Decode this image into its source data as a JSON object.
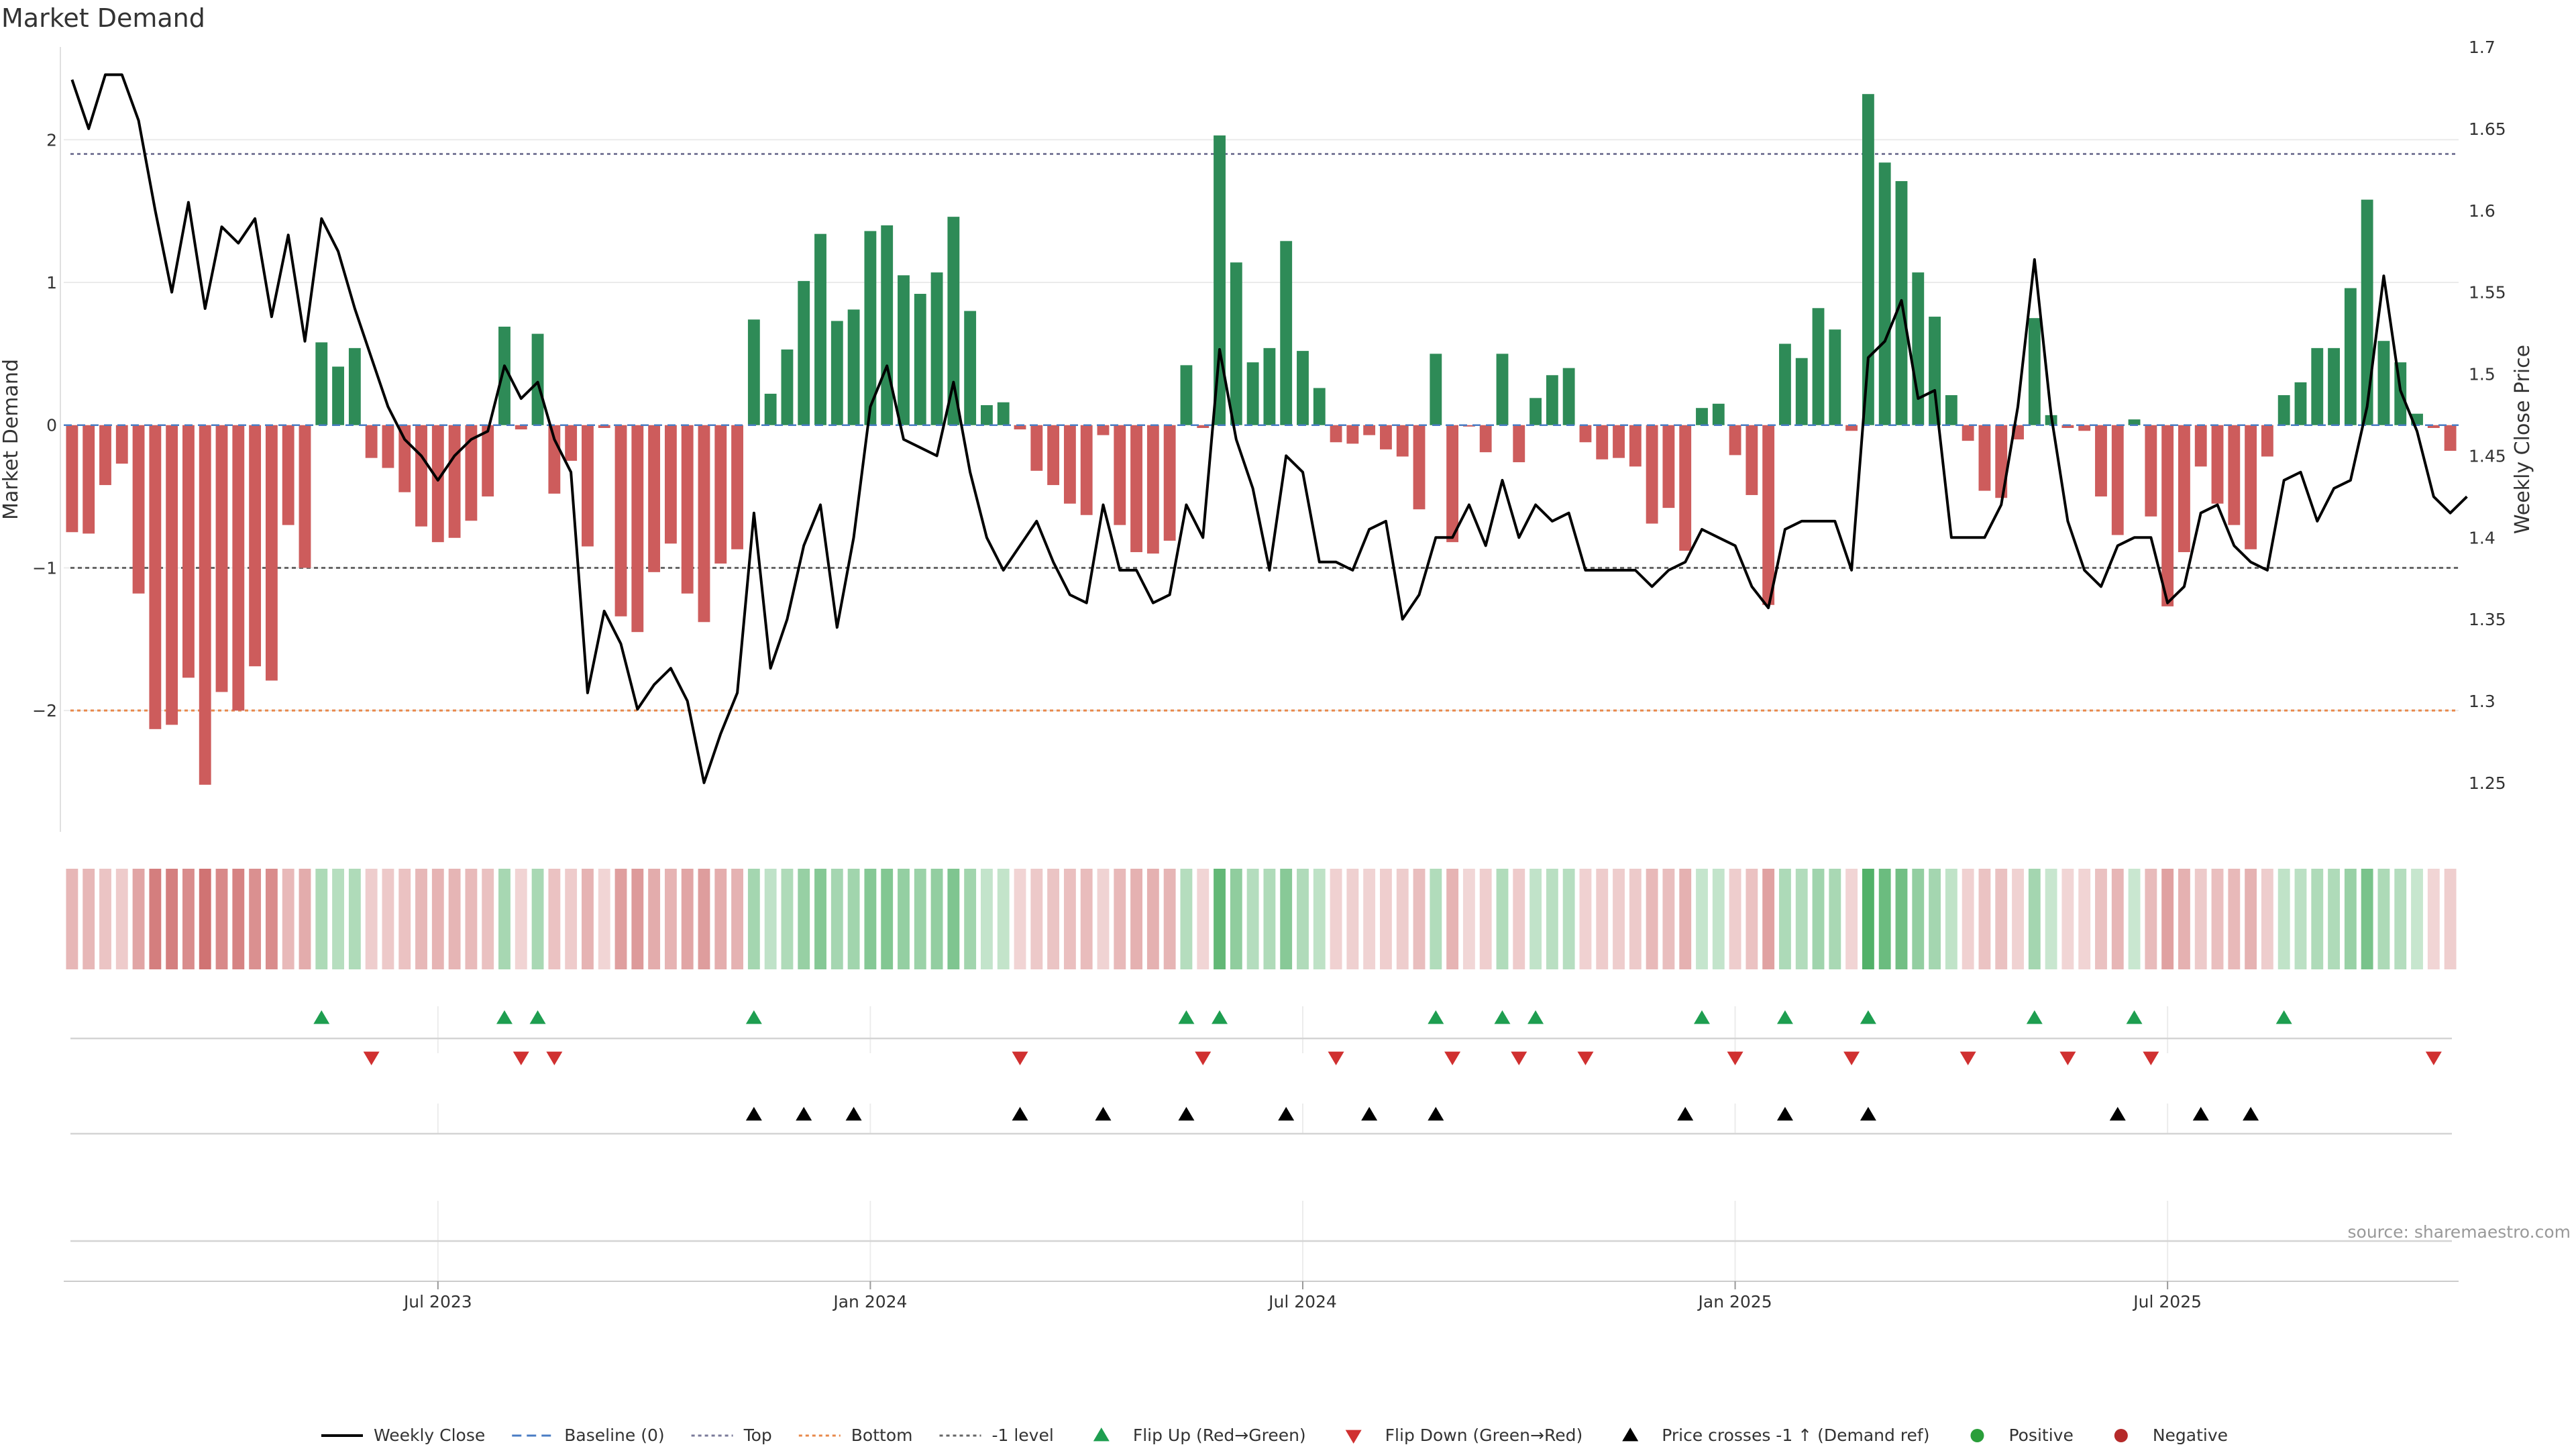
{
  "chart_data": {
    "type": "bar",
    "title": "Market Demand",
    "ylabel_left": "Market Demand",
    "ylabel_right": "Weekly Close Price",
    "source": "source: sharemaestro.com",
    "ylim_left": [
      -2.85,
      2.65
    ],
    "ylim_right": [
      1.22,
      1.7
    ],
    "yticks_left": [
      {
        "value": 2,
        "label": "2"
      },
      {
        "value": 1,
        "label": "1"
      },
      {
        "value": 0,
        "label": "0"
      },
      {
        "value": -1,
        "label": "−1"
      },
      {
        "value": -2,
        "label": "−2"
      }
    ],
    "yticks_right": [
      {
        "value": 1.7,
        "label": "1.7"
      },
      {
        "value": 1.65,
        "label": "1.65"
      },
      {
        "value": 1.6,
        "label": "1.6"
      },
      {
        "value": 1.55,
        "label": "1.55"
      },
      {
        "value": 1.5,
        "label": "1.5"
      },
      {
        "value": 1.45,
        "label": "1.45"
      },
      {
        "value": 1.4,
        "label": "1.4"
      },
      {
        "value": 1.35,
        "label": "1.35"
      },
      {
        "value": 1.3,
        "label": "1.3"
      },
      {
        "value": 1.25,
        "label": "1.25"
      }
    ],
    "xticks": [
      {
        "index": 22,
        "label": "Jul 2023"
      },
      {
        "index": 48,
        "label": "Jan 2024"
      },
      {
        "index": 74,
        "label": "Jul 2024"
      },
      {
        "index": 100,
        "label": "Jan 2025"
      },
      {
        "index": 126,
        "label": "Jul 2025"
      }
    ],
    "reference_lines": {
      "top": 1.9,
      "bottom": -2.0,
      "minus_one": -1.0,
      "baseline": 0
    },
    "demand": [
      -0.75,
      -0.76,
      -0.42,
      -0.27,
      -1.18,
      -2.13,
      -2.1,
      -1.77,
      -2.52,
      -1.87,
      -2.0,
      -1.69,
      -1.79,
      -0.7,
      -1.0,
      0.58,
      0.41,
      0.54,
      -0.23,
      -0.3,
      -0.47,
      -0.71,
      -0.82,
      -0.79,
      -0.67,
      -0.5,
      0.69,
      -0.03,
      0.64,
      -0.48,
      -0.25,
      -0.85,
      -0.02,
      -1.34,
      -1.45,
      -1.03,
      -0.83,
      -1.18,
      -1.38,
      -0.97,
      -0.87,
      0.74,
      0.22,
      0.53,
      1.01,
      1.34,
      0.73,
      0.81,
      1.36,
      1.4,
      1.05,
      0.92,
      1.07,
      1.46,
      0.8,
      0.14,
      0.16,
      -0.03,
      -0.32,
      -0.42,
      -0.55,
      -0.63,
      -0.07,
      -0.7,
      -0.89,
      -0.9,
      -0.81,
      0.42,
      -0.02,
      2.03,
      1.14,
      0.44,
      0.54,
      1.29,
      0.52,
      0.26,
      -0.12,
      -0.13,
      -0.07,
      -0.17,
      -0.22,
      -0.59,
      0.5,
      -0.82,
      -0.01,
      -0.19,
      0.5,
      -0.26,
      0.19,
      0.35,
      0.4,
      -0.12,
      -0.24,
      -0.23,
      -0.29,
      -0.69,
      -0.58,
      -0.88,
      0.12,
      0.15,
      -0.21,
      -0.49,
      -1.26,
      0.57,
      0.47,
      0.82,
      0.67,
      -0.04,
      2.32,
      1.84,
      1.71,
      1.07,
      0.76,
      0.21,
      -0.11,
      -0.46,
      -0.51,
      -0.1,
      0.75,
      0.07,
      -0.02,
      -0.04,
      -0.5,
      -0.77,
      0.04,
      -0.64,
      -1.27,
      -0.89,
      -0.29,
      -0.55,
      -0.7,
      -0.87,
      -0.22,
      0.21,
      0.3,
      0.54,
      0.54,
      0.96,
      1.58,
      0.59,
      0.44,
      0.08,
      -0.02,
      -0.18
    ],
    "price": [
      1.68,
      1.65,
      1.683,
      1.683,
      1.655,
      1.6,
      1.55,
      1.605,
      1.54,
      1.59,
      1.58,
      1.595,
      1.535,
      1.585,
      1.52,
      1.595,
      1.575,
      1.54,
      1.51,
      1.48,
      1.46,
      1.45,
      1.435,
      1.45,
      1.46,
      1.465,
      1.505,
      1.485,
      1.495,
      1.46,
      1.44,
      1.305,
      1.355,
      1.335,
      1.295,
      1.31,
      1.32,
      1.3,
      1.25,
      1.28,
      1.305,
      1.415,
      1.32,
      1.35,
      1.395,
      1.42,
      1.345,
      1.4,
      1.48,
      1.505,
      1.46,
      1.455,
      1.45,
      1.495,
      1.44,
      1.4,
      1.38,
      1.395,
      1.41,
      1.385,
      1.365,
      1.36,
      1.42,
      1.38,
      1.38,
      1.36,
      1.365,
      1.42,
      1.4,
      1.515,
      1.46,
      1.43,
      1.38,
      1.45,
      1.44,
      1.385,
      1.385,
      1.38,
      1.405,
      1.41,
      1.35,
      1.365,
      1.4,
      1.4,
      1.42,
      1.395,
      1.435,
      1.4,
      1.42,
      1.41,
      1.415,
      1.38,
      1.38,
      1.38,
      1.38,
      1.37,
      1.38,
      1.385,
      1.405,
      1.4,
      1.395,
      1.37,
      1.357,
      1.405,
      1.41,
      1.41,
      1.41,
      1.38,
      1.51,
      1.52,
      1.545,
      1.485,
      1.49,
      1.4,
      1.4,
      1.4,
      1.42,
      1.48,
      1.57,
      1.475,
      1.41,
      1.38,
      1.37,
      1.395,
      1.4,
      1.4,
      1.36,
      1.37,
      1.415,
      1.42,
      1.395,
      1.385,
      1.38,
      1.435,
      1.44,
      1.41,
      1.43,
      1.435,
      1.48,
      1.56,
      1.49,
      1.465,
      1.425,
      1.415,
      1.425
    ],
    "flip_up_indices": [
      15,
      26,
      28,
      41,
      67,
      69,
      82,
      86,
      88,
      98,
      103,
      108,
      118,
      124,
      133
    ],
    "flip_down_indices": [
      18,
      27,
      29,
      57,
      68,
      76,
      83,
      87,
      91,
      100,
      107,
      114,
      120,
      125,
      142
    ],
    "price_cross_indices": [
      41,
      44,
      47,
      57,
      62,
      67,
      73,
      78,
      82,
      97,
      103,
      108,
      123,
      128,
      131
    ],
    "legend": [
      {
        "label": "Weekly Close",
        "kind": "line",
        "color": "#000000"
      },
      {
        "label": "Baseline (0)",
        "kind": "dashed",
        "color": "#4a7cc4"
      },
      {
        "label": "Top",
        "kind": "dotted",
        "color": "#7a7a99"
      },
      {
        "label": "Bottom",
        "kind": "dotted",
        "color": "#e8884a"
      },
      {
        "label": "-1 level",
        "kind": "dotted",
        "color": "#666666"
      },
      {
        "label": "Flip Up (Red→Green)",
        "kind": "tri-up",
        "color": "#1e9e50"
      },
      {
        "label": "Flip Down (Green→Red)",
        "kind": "tri-down",
        "color": "#d03030"
      },
      {
        "label": "Price crosses -1 ↑ (Demand ref)",
        "kind": "tri-up",
        "color": "#000000"
      },
      {
        "label": "Positive",
        "kind": "dot",
        "color": "#2a9e3a"
      },
      {
        "label": "Negative",
        "kind": "dot",
        "color": "#b52a2a"
      }
    ],
    "colors": {
      "positive_bar": "#2e8b57",
      "negative_bar": "#cd5c5c",
      "heat_positive": "#2fa14a",
      "heat_negative": "#c85a5a",
      "price_line": "#000000"
    }
  }
}
